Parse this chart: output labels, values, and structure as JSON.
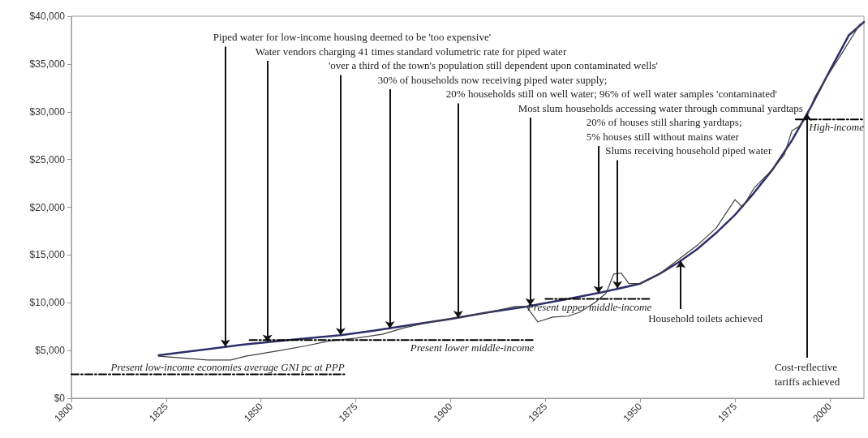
{
  "chart_data": {
    "type": "line",
    "marker": "none",
    "xlim": [
      1800,
      2009
    ],
    "xticks": [
      1800,
      1825,
      1850,
      1875,
      1900,
      1925,
      1950,
      1975,
      2000
    ],
    "ylim": [
      0,
      40000
    ],
    "yticks": [
      {
        "value": 0,
        "label": "$0"
      },
      {
        "value": 5000,
        "label": "$5,000"
      },
      {
        "value": 10000,
        "label": "$10,000"
      },
      {
        "value": 15000,
        "label": "$15,000"
      },
      {
        "value": 20000,
        "label": "$20,000"
      },
      {
        "value": 25000,
        "label": "$25,000"
      },
      {
        "value": 30000,
        "label": "$30,000"
      },
      {
        "value": 35000,
        "label": "$35,000"
      },
      {
        "value": 40000,
        "label": "$40,000"
      }
    ],
    "series": [
      {
        "color": "#2f2f6b",
        "x": [
          1823,
          1835,
          1845,
          1860,
          1871,
          1880,
          1890,
          1900,
          1910,
          1920,
          1931,
          1940,
          1950,
          1955,
          1960,
          1965,
          1970,
          1975,
          1980,
          1985,
          1990,
          1995,
          2000,
          2005,
          2009
        ],
        "values": [
          4500,
          5100,
          5600,
          6200,
          6600,
          7100,
          7700,
          8300,
          9000,
          9600,
          10400,
          11100,
          12000,
          13000,
          14200,
          15600,
          17300,
          19200,
          21500,
          24000,
          27000,
          30500,
          34300,
          38000,
          39400
        ]
      },
      {
        "color": "#404040",
        "x": [
          1823,
          1830,
          1836,
          1842,
          1846,
          1855,
          1862,
          1868,
          1875,
          1882,
          1888,
          1895,
          1902,
          1910,
          1917,
          1920,
          1923,
          1927,
          1931,
          1934,
          1938,
          1941,
          1943,
          1945,
          1947,
          1950,
          1955,
          1960,
          1965,
          1970,
          1975,
          1977,
          1980,
          1985,
          1988,
          1990,
          1992,
          1994,
          1996,
          1999,
          2003,
          2008
        ],
        "values": [
          4400,
          4200,
          4000,
          4000,
          4400,
          5000,
          5500,
          6000,
          6300,
          6700,
          7400,
          8000,
          8500,
          9000,
          9600,
          9600,
          8000,
          8500,
          8600,
          9000,
          10000,
          11000,
          13000,
          13100,
          12000,
          12000,
          13000,
          14500,
          16000,
          17800,
          20800,
          20000,
          22000,
          24000,
          25500,
          28000,
          28500,
          29500,
          31500,
          33500,
          36000,
          39200
        ]
      },
      {
        "name": "Present low-income economies average GNI pc at PPP",
        "color": "#000000",
        "line_style": "dashed",
        "x": [
          1800,
          1872
        ],
        "values": [
          2500,
          2500
        ]
      },
      {
        "name": "Present lower middle-income",
        "color": "#000000",
        "line_style": "dashed",
        "x": [
          1847,
          1922
        ],
        "values": [
          6100,
          6100
        ]
      },
      {
        "name": "Present upper middle-income",
        "color": "#000000",
        "line_style": "dashed",
        "x": [
          1925,
          1953
        ],
        "values": [
          10400,
          10400
        ]
      },
      {
        "name": "High-income",
        "color": "#000000",
        "line_style": "dashed",
        "x": [
          1991,
          2009
        ],
        "values": [
          29200,
          29200
        ]
      }
    ],
    "annotations": [
      {
        "text": "Piped water for low-income housing deemed to be 'too expensive'",
        "x": 1840.6,
        "y": 5400
      },
      {
        "text": "Water vendors charging 41 times standard volumetric rate for piped water",
        "x": 1851.7,
        "y": 5900
      },
      {
        "text": "'over a third of the town's population still dependent upon contaminated wells'",
        "x": 1871,
        "y": 6600
      },
      {
        "text": "30% of households now receiving piped water supply;",
        "x": 1884,
        "y": 7300
      },
      {
        "text": "20% households still on well water; 96% of well water samples 'contaminated'",
        "x": 1902,
        "y": 8400
      },
      {
        "text": "Most slum households accessing water through communal yardtaps",
        "x": 1921,
        "y": 9700
      },
      {
        "text": "20% of houses still sharing yardtaps;\n5% houses still without mains water",
        "x": 1939,
        "y": 11000
      },
      {
        "text": "Slums receiving household piped water",
        "x": 1944,
        "y": 11500
      },
      {
        "text": "Household toilets achieved",
        "x": 1960.7,
        "y": 14400
      },
      {
        "text": "Cost-reflective\ntariffs achieved",
        "x": 1994,
        "y": 29800
      }
    ]
  }
}
